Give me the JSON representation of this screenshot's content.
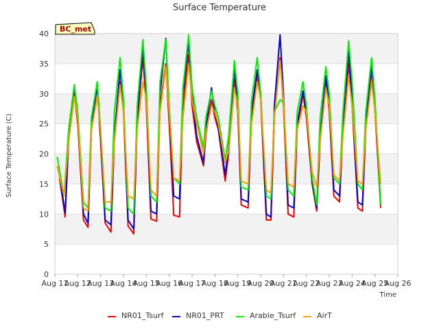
{
  "chart_data": {
    "type": "line",
    "title": "Surface Temperature",
    "xlabel": "Time",
    "ylabel": "Surface Temperature (C)",
    "site_badge": "BC_met",
    "ylim": [
      0,
      40
    ],
    "y_ticks": [
      0,
      5,
      10,
      15,
      20,
      25,
      30,
      35,
      40
    ],
    "xlim": [
      11,
      26
    ],
    "x_ticks": [
      {
        "value": 11,
        "label": "Aug 11"
      },
      {
        "value": 12,
        "label": "Aug 12"
      },
      {
        "value": 13,
        "label": "Aug 13"
      },
      {
        "value": 14,
        "label": "Aug 14"
      },
      {
        "value": 15,
        "label": "Aug 15"
      },
      {
        "value": 16,
        "label": "Aug 16"
      },
      {
        "value": 17,
        "label": "Aug 17"
      },
      {
        "value": 18,
        "label": "Aug 18"
      },
      {
        "value": 19,
        "label": "Aug 19"
      },
      {
        "value": 20,
        "label": "Aug 20"
      },
      {
        "value": 21,
        "label": "Aug 21"
      },
      {
        "value": 22,
        "label": "Aug 22"
      },
      {
        "value": 23,
        "label": "Aug 23"
      },
      {
        "value": 24,
        "label": "Aug 24"
      },
      {
        "value": 25,
        "label": "Aug 25"
      },
      {
        "value": 26,
        "label": "Aug 26"
      }
    ],
    "grid": true,
    "legend_position": "bottom",
    "series": [
      {
        "name": "NR01_Tsurf",
        "color": "#ee0000",
        "x": [
          11.2,
          11.45,
          11.6,
          11.85,
          12.0,
          12.25,
          12.45,
          12.6,
          12.85,
          13.0,
          13.2,
          13.45,
          13.6,
          13.85,
          14.0,
          14.2,
          14.45,
          14.6,
          14.85,
          15.0,
          15.2,
          15.45,
          15.6,
          15.85,
          16.0,
          16.2,
          16.45,
          16.6,
          16.85,
          17.0,
          17.2,
          17.5,
          17.6,
          17.85,
          18.0,
          18.15,
          18.45,
          18.6,
          18.85,
          19.0,
          19.15,
          19.45,
          19.6,
          19.85,
          20.0,
          20.25,
          20.45,
          20.6,
          20.85,
          21.0,
          21.2,
          21.45,
          21.6,
          21.85,
          22.0,
          22.25,
          22.45,
          22.6,
          22.85,
          23.0,
          23.2,
          23.45,
          23.6,
          23.85,
          24.0,
          24.25,
          24.45,
          24.6,
          24.85,
          25.0,
          25.25
        ],
        "y": [
          16,
          9.5,
          22,
          30,
          25,
          9,
          7.8,
          24,
          31.5,
          22,
          8.5,
          7,
          22,
          32,
          27,
          8,
          6.7,
          25,
          36,
          28,
          9.2,
          8.8,
          28,
          35,
          25,
          9.8,
          9.5,
          28,
          36.5,
          28,
          22,
          18,
          23,
          29,
          26,
          24,
          15.5,
          20,
          32.5,
          27,
          11.5,
          11,
          26,
          33,
          29,
          9,
          9,
          26,
          36,
          28,
          10,
          9.5,
          24,
          30,
          26,
          15,
          10.5,
          22,
          32.5,
          27,
          13,
          12,
          24,
          35,
          28,
          11,
          10.5,
          24,
          34,
          27,
          11
        ]
      },
      {
        "name": "NR01_PRT",
        "color": "#0000cc",
        "x": [
          11.2,
          11.45,
          11.6,
          11.85,
          12.0,
          12.25,
          12.45,
          12.6,
          12.85,
          13.0,
          13.2,
          13.45,
          13.6,
          13.85,
          14.0,
          14.2,
          14.45,
          14.6,
          14.85,
          15.0,
          15.2,
          15.45,
          15.6,
          15.85,
          16.0,
          16.2,
          16.45,
          16.6,
          16.85,
          17.0,
          17.2,
          17.5,
          17.6,
          17.85,
          18.0,
          18.15,
          18.45,
          18.6,
          18.85,
          19.0,
          19.15,
          19.45,
          19.6,
          19.85,
          20.0,
          20.25,
          20.45,
          20.6,
          20.85,
          21.0,
          21.2,
          21.45,
          21.6,
          21.85,
          22.0,
          22.25,
          22.45,
          22.6,
          22.85,
          23.0,
          23.2,
          23.45,
          23.6,
          23.85,
          24.0,
          24.25,
          24.45,
          24.6,
          24.85,
          25.0,
          25.25
        ],
        "y": [
          16.5,
          10.2,
          23,
          31.3,
          26,
          10,
          8.5,
          25,
          31.2,
          23,
          9,
          8.2,
          23,
          34,
          28,
          9,
          7.5,
          26,
          37.5,
          30,
          10.5,
          10,
          30,
          39.2,
          27,
          13,
          12.5,
          30,
          38.5,
          30,
          23,
          18.5,
          24,
          31,
          27,
          24.5,
          16.5,
          21,
          34.5,
          28,
          12.5,
          12,
          27,
          34,
          30,
          10,
          9.5,
          28,
          39.8,
          30,
          11.5,
          11,
          25,
          30.5,
          27,
          15.5,
          11,
          23,
          33,
          28,
          14,
          13,
          25,
          37,
          29,
          12,
          11.5,
          25,
          35,
          28,
          11.5
        ]
      },
      {
        "name": "Arable_Tsurf",
        "color": "#00ee00",
        "x": [
          11.1,
          11.4,
          11.6,
          11.85,
          12.0,
          12.25,
          12.45,
          12.6,
          12.85,
          13.0,
          13.2,
          13.45,
          13.6,
          13.85,
          14.0,
          14.2,
          14.45,
          14.6,
          14.85,
          15.0,
          15.2,
          15.45,
          15.6,
          15.85,
          16.0,
          16.2,
          16.45,
          16.6,
          16.85,
          17.0,
          17.2,
          17.5,
          17.6,
          17.85,
          18.0,
          18.15,
          18.45,
          18.6,
          18.85,
          19.0,
          19.15,
          19.45,
          19.6,
          19.85,
          20.0,
          20.25,
          20.45,
          20.6,
          20.85,
          21.0,
          21.2,
          21.45,
          21.6,
          21.85,
          22.0,
          22.25,
          22.45,
          22.6,
          22.85,
          23.0,
          23.2,
          23.45,
          23.6,
          23.85,
          24.0,
          24.25,
          24.45,
          24.6,
          24.85,
          25.0,
          25.25
        ],
        "y": [
          19.5,
          13,
          24,
          31.5,
          27,
          12,
          11,
          26,
          32,
          24,
          11,
          10.5,
          27,
          36,
          29,
          11,
          10,
          28,
          39,
          31,
          13,
          12,
          32,
          39,
          28,
          16,
          15,
          31,
          39.8,
          31,
          26,
          21,
          26,
          30.5,
          28,
          26,
          19,
          23,
          35.5,
          30,
          14.5,
          14,
          29,
          36,
          30,
          13,
          12.5,
          27,
          29,
          28.5,
          14,
          13,
          27,
          32,
          28,
          16,
          11.5,
          26,
          34.5,
          30,
          16,
          15,
          27,
          38.8,
          32,
          15,
          14,
          27,
          36,
          29,
          11.5
        ]
      },
      {
        "name": "AirT",
        "color": "#f0a000",
        "x": [
          11.1,
          11.4,
          11.6,
          11.85,
          12.0,
          12.25,
          12.45,
          12.6,
          12.85,
          13.0,
          13.2,
          13.45,
          13.6,
          13.85,
          14.0,
          14.2,
          14.45,
          14.6,
          14.85,
          15.0,
          15.2,
          15.45,
          15.6,
          15.85,
          16.0,
          16.2,
          16.45,
          16.6,
          16.85,
          17.0,
          17.2,
          17.5,
          17.6,
          17.85,
          18.0,
          18.15,
          18.45,
          18.6,
          18.85,
          19.0,
          19.15,
          19.45,
          19.6,
          19.85,
          20.0,
          20.25,
          20.45,
          20.6,
          20.85,
          21.0,
          21.2,
          21.45,
          21.6,
          21.85,
          22.0,
          22.25,
          22.45,
          22.6,
          22.85,
          23.0,
          23.2,
          23.45,
          23.6,
          23.85,
          24.0,
          24.25,
          24.45,
          24.6,
          24.85,
          25.0,
          25.25
        ],
        "y": [
          18,
          13,
          22,
          29.5,
          26,
          11,
          10.5,
          24,
          29.5,
          24,
          12,
          12,
          22,
          31.5,
          27,
          13,
          12.5,
          24,
          32,
          29,
          14,
          13,
          27,
          34.5,
          27,
          16,
          15.5,
          26,
          35,
          29,
          25,
          20,
          23.5,
          28,
          27,
          25,
          18.5,
          20.5,
          31,
          28,
          15.5,
          15,
          25,
          32,
          29,
          14,
          13.5,
          26,
          35.5,
          29,
          15,
          14.5,
          24,
          28,
          27,
          17,
          14.5,
          22,
          31,
          28,
          16.5,
          15.5,
          23,
          33,
          28,
          15.5,
          15,
          24,
          32,
          27,
          15
        ]
      }
    ]
  }
}
